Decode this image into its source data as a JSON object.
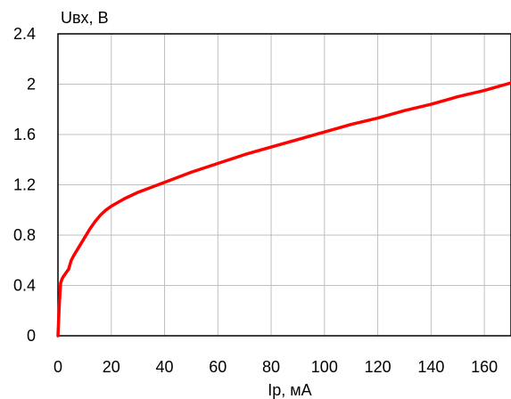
{
  "chart_data": {
    "type": "line",
    "title": "",
    "xlabel": "Iр, мА",
    "ylabel": "Uвх, В",
    "xlim": [
      0,
      170
    ],
    "ylim": [
      0,
      2.4
    ],
    "xticks": [
      0,
      20,
      40,
      60,
      80,
      100,
      120,
      140,
      160
    ],
    "xtick_labels": [
      "0",
      "20",
      "40",
      "60",
      "80",
      "100",
      "120",
      "140",
      "160"
    ],
    "yticks": [
      0,
      0.4,
      0.8,
      1.2,
      1.6,
      2.0,
      2.4
    ],
    "ytick_labels": [
      "0",
      "0.4",
      "0.8",
      "1.2",
      "1.6",
      "2",
      "2.4"
    ],
    "grid": true,
    "legend": "none",
    "series": [
      {
        "color": "#ff0000",
        "x": [
          0,
          0.5,
          1,
          1.5,
          2,
          3,
          4,
          5,
          6,
          8,
          10,
          12,
          14,
          16,
          18,
          20,
          25,
          30,
          40,
          50,
          60,
          70,
          80,
          90,
          100,
          110,
          120,
          130,
          140,
          150,
          160,
          170
        ],
        "y": [
          0,
          0.25,
          0.42,
          0.45,
          0.47,
          0.5,
          0.53,
          0.6,
          0.64,
          0.71,
          0.78,
          0.85,
          0.91,
          0.96,
          1.0,
          1.03,
          1.09,
          1.14,
          1.22,
          1.3,
          1.37,
          1.44,
          1.5,
          1.56,
          1.62,
          1.68,
          1.73,
          1.79,
          1.84,
          1.9,
          1.95,
          2.01
        ]
      }
    ]
  }
}
